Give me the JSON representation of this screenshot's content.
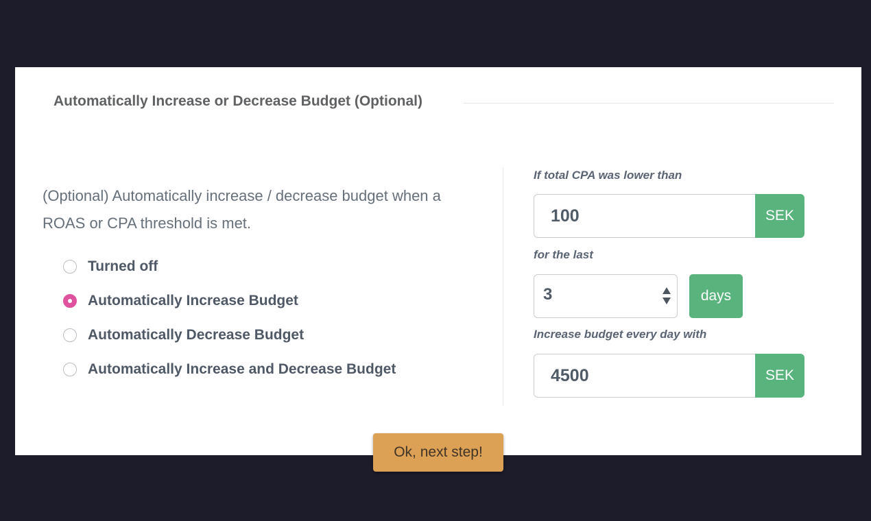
{
  "section": {
    "title": "Automatically Increase or Decrease Budget (Optional)"
  },
  "description": "(Optional) Automatically increase / decrease budget when a ROAS or CPA threshold is met.",
  "options": [
    {
      "label": "Turned off",
      "selected": false
    },
    {
      "label": "Automatically Increase Budget",
      "selected": true
    },
    {
      "label": "Automatically Decrease Budget",
      "selected": false
    },
    {
      "label": "Automatically Increase and Decrease Budget",
      "selected": false
    }
  ],
  "settings": {
    "cpa_label": "If total CPA was lower than",
    "cpa_value": "100",
    "cpa_currency": "SEK",
    "period_label": "for the last",
    "period_value": "3",
    "period_unit": "days",
    "increase_label": "Increase budget every day with",
    "increase_value": "4500",
    "increase_currency": "SEK"
  },
  "actions": {
    "next_label": "Ok, next step!"
  },
  "colors": {
    "background": "#1d1c2b",
    "accent_pink": "#e0519e",
    "addon_green": "#59b37d",
    "button_orange": "#dca155"
  }
}
